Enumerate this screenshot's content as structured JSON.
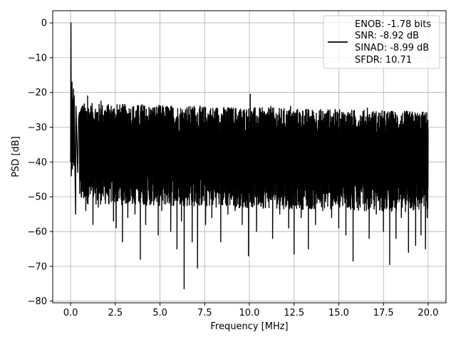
{
  "chart_data": {
    "type": "line",
    "title": "",
    "xlabel": "Frequency [MHz]",
    "ylabel": "PSD [dB]",
    "xlim": [
      -1.0,
      21.0
    ],
    "ylim": [
      -80.5,
      3.5
    ],
    "x_ticks": [
      0.0,
      2.5,
      5.0,
      7.5,
      10.0,
      12.5,
      15.0,
      17.5,
      20.0
    ],
    "x_tick_labels": [
      "0.0",
      "2.5",
      "5.0",
      "7.5",
      "10.0",
      "12.5",
      "15.0",
      "17.5",
      "20.0"
    ],
    "y_ticks": [
      0,
      -10,
      -20,
      -30,
      -40,
      -50,
      -60,
      -70,
      -80
    ],
    "y_tick_labels": [
      "0",
      "−10",
      "−20",
      "−30",
      "−40",
      "−50",
      "−60",
      "−70",
      "−80"
    ],
    "grid": true,
    "legend_position": "top-right",
    "legend_lines": [
      "ENOB: -1.78 bits",
      "SNR: -8.92 dB",
      "SINAD: -8.99 dB",
      "SFDR: 10.71"
    ],
    "line_color": "#000000",
    "series": [
      {
        "x_start": 0.0,
        "x_end": 20.0,
        "points": [
          [
            0.0,
            -40.0
          ],
          [
            0.02,
            0.0
          ],
          [
            0.04,
            -44.0
          ],
          [
            0.06,
            -38.0
          ],
          [
            0.08,
            -17.0
          ],
          [
            0.1,
            -42.0
          ],
          [
            0.12,
            -22.0
          ],
          [
            0.14,
            -40.0
          ],
          [
            0.16,
            -19.0
          ],
          [
            0.18,
            -41.0
          ],
          [
            0.2,
            -21.0
          ],
          [
            0.25,
            -44.0
          ],
          [
            0.3,
            -24.0
          ],
          [
            0.4,
            -43.0
          ],
          [
            0.45,
            -27.0
          ]
        ],
        "noise_upper_range": [
          -31.0,
          -23.0
        ],
        "noise_lower_range": [
          -52.0,
          -42.0
        ],
        "deep_dips": [
          [
            0.28,
            -55.0
          ],
          [
            0.85,
            -54.0
          ],
          [
            1.25,
            -58.0
          ],
          [
            1.55,
            -53.0
          ],
          [
            2.15,
            -52.0
          ],
          [
            2.4,
            -57.0
          ],
          [
            2.55,
            -59.0
          ],
          [
            2.9,
            -63.0
          ],
          [
            3.2,
            -56.0
          ],
          [
            3.6,
            -55.0
          ],
          [
            3.9,
            -68.0
          ],
          [
            4.2,
            -58.0
          ],
          [
            4.5,
            -52.0
          ],
          [
            4.9,
            -61.0
          ],
          [
            5.1,
            -54.0
          ],
          [
            5.6,
            -60.0
          ],
          [
            5.95,
            -65.0
          ],
          [
            6.2,
            -57.0
          ],
          [
            6.35,
            -76.5
          ],
          [
            6.8,
            -63.0
          ],
          [
            7.1,
            -70.5
          ],
          [
            7.55,
            -58.0
          ],
          [
            7.9,
            -56.0
          ],
          [
            8.4,
            -63.0
          ],
          [
            8.8,
            -55.0
          ],
          [
            9.2,
            -54.0
          ],
          [
            9.6,
            -58.0
          ],
          [
            9.95,
            -67.0
          ],
          [
            10.4,
            -60.0
          ],
          [
            10.8,
            -52.0
          ],
          [
            11.3,
            -62.0
          ],
          [
            11.7,
            -55.0
          ],
          [
            12.2,
            -59.0
          ],
          [
            12.5,
            -66.5
          ],
          [
            12.9,
            -56.0
          ],
          [
            13.3,
            -65.0
          ],
          [
            13.7,
            -58.0
          ],
          [
            14.1,
            -54.0
          ],
          [
            14.6,
            -56.0
          ],
          [
            15.0,
            -59.0
          ],
          [
            15.4,
            -61.0
          ],
          [
            15.8,
            -68.5
          ],
          [
            16.2,
            -53.0
          ],
          [
            16.7,
            -62.0
          ],
          [
            17.1,
            -55.0
          ],
          [
            17.5,
            -60.0
          ],
          [
            17.85,
            -69.5
          ],
          [
            18.2,
            -62.0
          ],
          [
            18.5,
            -56.0
          ],
          [
            18.9,
            -66.0
          ],
          [
            19.3,
            -64.0
          ],
          [
            19.6,
            -61.0
          ],
          [
            19.85,
            -65.0
          ],
          [
            19.95,
            -56.0
          ]
        ],
        "peak_spikes": [
          [
            0.95,
            -21.0
          ],
          [
            1.7,
            -22.5
          ],
          [
            2.6,
            -23.5
          ],
          [
            4.0,
            -23.5
          ],
          [
            5.4,
            -24.0
          ],
          [
            6.9,
            -24.0
          ],
          [
            8.2,
            -24.5
          ],
          [
            10.05,
            -20.5
          ],
          [
            11.2,
            -24.0
          ],
          [
            12.3,
            -24.0
          ],
          [
            13.0,
            -25.5
          ],
          [
            14.4,
            -25.0
          ],
          [
            15.5,
            -26.0
          ],
          [
            16.6,
            -24.5
          ],
          [
            17.9,
            -26.5
          ],
          [
            19.1,
            -28.0
          ]
        ]
      }
    ]
  }
}
